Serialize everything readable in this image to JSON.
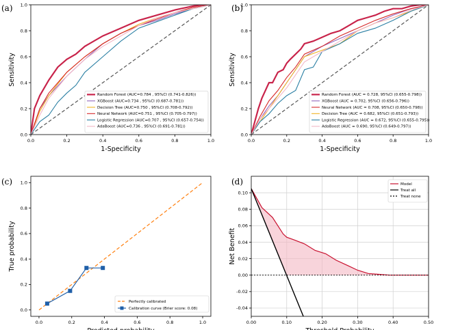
{
  "chart_data": [
    {
      "id": "a",
      "panel_label": "(a)",
      "type": "line",
      "xlabel": "1-Specificity",
      "ylabel": "Sensitivity",
      "xlim": [
        0,
        1
      ],
      "ylim": [
        0,
        1
      ],
      "xticks": [
        "0.0",
        "0.2",
        "0.4",
        "0.6",
        "0.8",
        "1.0"
      ],
      "yticks": [
        "0.0",
        "0.2",
        "0.4",
        "0.6",
        "0.8",
        "1.0"
      ],
      "legend_position": "lower-right",
      "series": [
        {
          "name": "Random Forest (AUC=0.784 , 95%CI (0.741-0.826))",
          "color": "#c8234a",
          "width": 2.2,
          "x": [
            0,
            0.02,
            0.05,
            0.1,
            0.15,
            0.2,
            0.25,
            0.3,
            0.4,
            0.5,
            0.6,
            0.7,
            0.8,
            0.9,
            0.95,
            1
          ],
          "y": [
            0,
            0.2,
            0.3,
            0.42,
            0.52,
            0.58,
            0.62,
            0.68,
            0.76,
            0.82,
            0.88,
            0.92,
            0.96,
            0.99,
            1,
            1
          ]
        },
        {
          "name": "XGBoost (AUC=0.734 , 95%CI (0.687-0.781))",
          "color": "#9467bd",
          "width": 1.1,
          "x": [
            0,
            0.05,
            0.1,
            0.2,
            0.3,
            0.4,
            0.5,
            0.6,
            0.7,
            0.8,
            0.9,
            1
          ],
          "y": [
            0,
            0.2,
            0.3,
            0.45,
            0.58,
            0.7,
            0.78,
            0.84,
            0.88,
            0.93,
            0.97,
            1
          ]
        },
        {
          "name": "Decision Tree (AUC=0.750 , 95%CI (0.708-0.792))",
          "color": "#f0b323",
          "width": 1.1,
          "x": [
            0,
            0.05,
            0.1,
            0.2,
            0.3,
            0.4,
            0.5,
            0.6,
            0.7,
            0.8,
            0.9,
            1
          ],
          "y": [
            0,
            0.18,
            0.3,
            0.48,
            0.6,
            0.7,
            0.78,
            0.85,
            0.9,
            0.94,
            0.97,
            1
          ]
        },
        {
          "name": "Neural Network (AUC=0.751 , 95%CI (0.705-0.797))",
          "color": "#d62728",
          "width": 1.1,
          "x": [
            0,
            0.05,
            0.1,
            0.2,
            0.3,
            0.4,
            0.5,
            0.6,
            0.7,
            0.8,
            0.9,
            1
          ],
          "y": [
            0,
            0.2,
            0.32,
            0.48,
            0.6,
            0.7,
            0.78,
            0.84,
            0.89,
            0.94,
            0.98,
            1
          ]
        },
        {
          "name": "Logistic Regression (AUC=0.707 , 95%CI (0.657-0.754))",
          "color": "#2a7fa3",
          "width": 1.1,
          "x": [
            0,
            0.05,
            0.1,
            0.15,
            0.2,
            0.25,
            0.3,
            0.4,
            0.5,
            0.6,
            0.7,
            0.8,
            0.9,
            1
          ],
          "y": [
            0,
            0.1,
            0.15,
            0.25,
            0.32,
            0.38,
            0.48,
            0.6,
            0.72,
            0.82,
            0.87,
            0.92,
            0.97,
            1
          ]
        },
        {
          "name": "AdaBoost (AUC=0.736 , 95%CI (0.691-0.781))",
          "color": "#f2b6c6",
          "width": 1.1,
          "x": [
            0,
            0.05,
            0.1,
            0.2,
            0.3,
            0.4,
            0.5,
            0.6,
            0.7,
            0.8,
            0.9,
            1
          ],
          "y": [
            0,
            0.15,
            0.28,
            0.45,
            0.58,
            0.68,
            0.76,
            0.84,
            0.9,
            0.94,
            0.97,
            1
          ]
        }
      ]
    },
    {
      "id": "b",
      "panel_label": "(b)",
      "type": "line",
      "xlabel": "1-Specificity",
      "ylabel": "Sensitivity",
      "xlim": [
        0,
        1
      ],
      "ylim": [
        0,
        1
      ],
      "xticks": [
        "0.0",
        "0.2",
        "0.4",
        "0.6",
        "0.8",
        "1.0"
      ],
      "yticks": [
        "0.0",
        "0.2",
        "0.4",
        "0.6",
        "0.8",
        "1.0"
      ],
      "legend_position": "lower-right",
      "series": [
        {
          "name": "Random Forest (AUC = 0.728, 95%CI (0.655-0.798))",
          "color": "#c8234a",
          "width": 2.2,
          "x": [
            0,
            0.02,
            0.04,
            0.06,
            0.08,
            0.1,
            0.12,
            0.15,
            0.18,
            0.2,
            0.22,
            0.25,
            0.28,
            0.3,
            0.35,
            0.4,
            0.45,
            0.5,
            0.55,
            0.6,
            0.65,
            0.7,
            0.75,
            0.8,
            0.85,
            0.9,
            0.95,
            1
          ],
          "y": [
            0,
            0.1,
            0.2,
            0.28,
            0.34,
            0.4,
            0.4,
            0.48,
            0.5,
            0.55,
            0.58,
            0.62,
            0.66,
            0.7,
            0.72,
            0.75,
            0.78,
            0.8,
            0.84,
            0.88,
            0.9,
            0.92,
            0.95,
            0.97,
            0.97,
            0.99,
            1,
            1
          ]
        },
        {
          "name": "XGBoost (AUC = 0.702, 95%CI (0.656-0.796))",
          "color": "#9467bd",
          "width": 1.1,
          "x": [
            0,
            0.05,
            0.1,
            0.15,
            0.2,
            0.25,
            0.3,
            0.4,
            0.5,
            0.6,
            0.7,
            0.8,
            0.9,
            1
          ],
          "y": [
            0,
            0.12,
            0.22,
            0.3,
            0.4,
            0.5,
            0.6,
            0.68,
            0.74,
            0.8,
            0.86,
            0.92,
            0.97,
            1
          ]
        },
        {
          "name": "Neural Network (AUC = 0.708, 95%CI (0.650-0.798))",
          "color": "#d62728",
          "width": 1.1,
          "x": [
            0,
            0.05,
            0.1,
            0.15,
            0.2,
            0.25,
            0.3,
            0.4,
            0.5,
            0.6,
            0.7,
            0.8,
            0.9,
            1
          ],
          "y": [
            0,
            0.14,
            0.26,
            0.34,
            0.44,
            0.52,
            0.62,
            0.68,
            0.76,
            0.82,
            0.88,
            0.93,
            0.97,
            1
          ]
        },
        {
          "name": "Decision Tree (AUC = 0.682, 95%CI (0.651-0.793))",
          "color": "#f0b323",
          "width": 1.1,
          "x": [
            0,
            0.05,
            0.1,
            0.15,
            0.2,
            0.25,
            0.3,
            0.4,
            0.5,
            0.6,
            0.7,
            0.8,
            0.9,
            1
          ],
          "y": [
            0,
            0.1,
            0.2,
            0.3,
            0.4,
            0.5,
            0.6,
            0.65,
            0.7,
            0.8,
            0.86,
            0.9,
            0.95,
            1
          ]
        },
        {
          "name": "Logistic Regression (AUC = 0.672, 95%CI (0.655-0.795))",
          "color": "#2a7fa3",
          "width": 1.1,
          "x": [
            0,
            0.05,
            0.1,
            0.15,
            0.2,
            0.25,
            0.3,
            0.35,
            0.4,
            0.5,
            0.6,
            0.7,
            0.8,
            0.9,
            1
          ],
          "y": [
            0,
            0.1,
            0.16,
            0.24,
            0.3,
            0.34,
            0.5,
            0.52,
            0.64,
            0.7,
            0.78,
            0.82,
            0.88,
            0.95,
            1
          ]
        },
        {
          "name": "AdaBoost (AUC = 0.690, 95%CI (0.649-0.797))",
          "color": "#f2b6c6",
          "width": 1.1,
          "x": [
            0,
            0.05,
            0.1,
            0.15,
            0.2,
            0.25,
            0.3,
            0.4,
            0.5,
            0.6,
            0.7,
            0.8,
            0.9,
            1
          ],
          "y": [
            0,
            0.12,
            0.2,
            0.28,
            0.36,
            0.46,
            0.56,
            0.64,
            0.72,
            0.8,
            0.86,
            0.9,
            0.96,
            1
          ]
        }
      ]
    },
    {
      "id": "c",
      "panel_label": "(c)",
      "type": "line",
      "xlabel": "Predicted probability",
      "ylabel": "True probability",
      "xlim": [
        -0.05,
        1.05
      ],
      "ylim": [
        -0.05,
        1.05
      ],
      "xticks": [
        "0.0",
        "0.2",
        "0.4",
        "0.6",
        "0.8",
        "1.0"
      ],
      "yticks": [
        "0.0",
        "0.2",
        "0.4",
        "0.6",
        "0.8",
        "1.0"
      ],
      "legend_position": "lower-right",
      "series": [
        {
          "name": "Perfectly calibrated",
          "color": "#ff7f0e",
          "style": "dashed",
          "x": [
            0,
            1
          ],
          "y": [
            0,
            1
          ]
        },
        {
          "name": "Calibration curve (Brier score: 0.08)",
          "color": "#1f5fa8",
          "style": "solid-square",
          "x": [
            0.05,
            0.19,
            0.29,
            0.39
          ],
          "y": [
            0.05,
            0.15,
            0.33,
            0.33
          ]
        }
      ]
    },
    {
      "id": "d",
      "panel_label": "(d)",
      "type": "area",
      "xlabel": "Threshold Probability",
      "ylabel": "Net Benefit",
      "xlim": [
        0,
        0.5
      ],
      "ylim": [
        -0.05,
        0.12
      ],
      "xticks": [
        "0.00",
        "0.10",
        "0.20",
        "0.30",
        "0.40",
        "0.50"
      ],
      "yticks": [
        "-0.04",
        "-0.02",
        "0.00",
        "0.02",
        "0.04",
        "0.06",
        "0.08",
        "0.10"
      ],
      "xtick_values": [
        0,
        0.1,
        0.2,
        0.3,
        0.4,
        0.5
      ],
      "ytick_values": [
        -0.04,
        -0.02,
        0,
        0.02,
        0.04,
        0.06,
        0.08,
        0.1
      ],
      "legend_position": "top-right",
      "series": [
        {
          "name": "Model",
          "color": "#c8102e",
          "x": [
            0,
            0.03,
            0.06,
            0.09,
            0.1,
            0.12,
            0.15,
            0.18,
            0.21,
            0.24,
            0.27,
            0.3,
            0.33,
            0.36,
            0.39,
            0.42,
            0.45,
            0.48,
            0.5
          ],
          "y": [
            0.105,
            0.082,
            0.07,
            0.05,
            0.046,
            0.043,
            0.038,
            0.03,
            0.026,
            0.018,
            0.012,
            0.006,
            0.002,
            0.001,
            0.0,
            0.0,
            0.0,
            0.0,
            0.0
          ]
        },
        {
          "name": "Treat all",
          "color": "#000000",
          "x": [
            0,
            0.147
          ],
          "y": [
            0.105,
            -0.05
          ]
        },
        {
          "name": "Treat none",
          "color": "#000000",
          "style": "dotted",
          "x": [
            0,
            0.5
          ],
          "y": [
            0,
            0
          ]
        }
      ]
    }
  ]
}
